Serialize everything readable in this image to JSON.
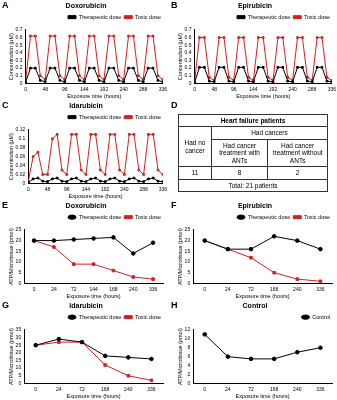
{
  "chart_data": [
    {
      "panel": "A",
      "type": "line",
      "title": "Doxorubicin",
      "x_label": "Exposure time (hours)",
      "y_label": "Concentration (μM)",
      "x": [
        0,
        12,
        24,
        36,
        48,
        60,
        72,
        84,
        96,
        108,
        120,
        132,
        144,
        156,
        168,
        180,
        192,
        204,
        216,
        228,
        240,
        252,
        264,
        276,
        288,
        300,
        312,
        324,
        336
      ],
      "xlim": [
        0,
        336
      ],
      "xticks": [
        0,
        48,
        96,
        144,
        192,
        240,
        288,
        336
      ],
      "ylim": [
        0,
        0.7
      ],
      "yticks": [
        0,
        0.1,
        0.2,
        0.3,
        0.4,
        0.5,
        0.6,
        0.7
      ],
      "grid": false,
      "legend": "upper right",
      "series": [
        {
          "name": "Therapeutic dose",
          "color": "#000000",
          "marker": "square",
          "values": [
            0.01,
            0.2,
            0.2,
            0.04,
            0.02,
            0.2,
            0.2,
            0.04,
            0.02,
            0.2,
            0.2,
            0.04,
            0.02,
            0.2,
            0.2,
            0.04,
            0.02,
            0.2,
            0.2,
            0.04,
            0.02,
            0.2,
            0.2,
            0.04,
            0.02,
            0.2,
            0.2,
            0.04,
            0.02
          ]
        },
        {
          "name": "Toxic dose",
          "color": "#d42020",
          "marker": "square",
          "values": [
            0.02,
            0.62,
            0.62,
            0.1,
            0.05,
            0.62,
            0.62,
            0.1,
            0.05,
            0.62,
            0.62,
            0.1,
            0.05,
            0.62,
            0.62,
            0.1,
            0.05,
            0.62,
            0.62,
            0.1,
            0.05,
            0.62,
            0.62,
            0.1,
            0.05,
            0.62,
            0.62,
            0.1,
            0.05
          ]
        }
      ]
    },
    {
      "panel": "B",
      "type": "line",
      "title": "Epirubicin",
      "x_label": "Exposure time (hours)",
      "y_label": "Concentration (μM)",
      "x": [
        0,
        12,
        24,
        36,
        48,
        60,
        72,
        84,
        96,
        108,
        120,
        132,
        144,
        156,
        168,
        180,
        192,
        204,
        216,
        228,
        240,
        252,
        264,
        276,
        288,
        300,
        312,
        324,
        336
      ],
      "xlim": [
        0,
        336
      ],
      "xticks": [
        0,
        48,
        96,
        144,
        192,
        240,
        288,
        336
      ],
      "ylim": [
        0,
        0.7
      ],
      "yticks": [
        0,
        0.1,
        0.2,
        0.3,
        0.4,
        0.5,
        0.6,
        0.7
      ],
      "grid": false,
      "legend": "upper right",
      "series": [
        {
          "name": "Therapeutic dose",
          "color": "#000000",
          "marker": "square",
          "values": [
            0.01,
            0.21,
            0.21,
            0.03,
            0.02,
            0.21,
            0.21,
            0.03,
            0.02,
            0.21,
            0.21,
            0.03,
            0.02,
            0.21,
            0.21,
            0.03,
            0.02,
            0.21,
            0.21,
            0.03,
            0.02,
            0.21,
            0.21,
            0.03,
            0.02,
            0.21,
            0.21,
            0.03,
            0.02
          ]
        },
        {
          "name": "Toxic dose",
          "color": "#d42020",
          "marker": "square",
          "values": [
            0.02,
            0.6,
            0.6,
            0.08,
            0.04,
            0.6,
            0.6,
            0.08,
            0.04,
            0.6,
            0.6,
            0.08,
            0.04,
            0.6,
            0.6,
            0.08,
            0.04,
            0.6,
            0.6,
            0.08,
            0.04,
            0.6,
            0.6,
            0.08,
            0.04,
            0.6,
            0.6,
            0.08,
            0.04
          ]
        }
      ]
    },
    {
      "panel": "C",
      "type": "line",
      "title": "Idarubicin",
      "x_label": "Exposure time (hours)",
      "y_label": "Concentration (μM)",
      "x": [
        0,
        12,
        24,
        36,
        48,
        60,
        72,
        84,
        96,
        108,
        120,
        132,
        144,
        156,
        168,
        180,
        192,
        204,
        216,
        228,
        240,
        252,
        264,
        276,
        288,
        300,
        312,
        324,
        336
      ],
      "xlim": [
        0,
        336
      ],
      "xticks": [
        0,
        48,
        96,
        144,
        192,
        240,
        288,
        336
      ],
      "ylim": [
        0,
        0.12
      ],
      "yticks": [
        0,
        0.02,
        0.04,
        0.06,
        0.08,
        0.1,
        0.12
      ],
      "grid": false,
      "legend": "upper right",
      "series": [
        {
          "name": "Therapeutic dose",
          "color": "#000000",
          "marker": "square",
          "values": [
            0.002,
            0.01,
            0.012,
            0.005,
            0.004,
            0.01,
            0.012,
            0.005,
            0.004,
            0.01,
            0.012,
            0.005,
            0.004,
            0.01,
            0.012,
            0.005,
            0.004,
            0.01,
            0.012,
            0.005,
            0.004,
            0.01,
            0.012,
            0.005,
            0.004,
            0.01,
            0.012,
            0.005,
            0.004
          ]
        },
        {
          "name": "Toxic dose",
          "color": "#d42020",
          "marker": "square",
          "values": [
            0.005,
            0.06,
            0.07,
            0.02,
            0.02,
            0.1,
            0.11,
            0.03,
            0.02,
            0.11,
            0.11,
            0.03,
            0.02,
            0.11,
            0.11,
            0.03,
            0.02,
            0.11,
            0.11,
            0.03,
            0.02,
            0.11,
            0.11,
            0.03,
            0.02,
            0.11,
            0.11,
            0.03,
            0.02
          ]
        }
      ]
    },
    {
      "panel": "E",
      "type": "line",
      "title": "Doxorubicin",
      "x_label": "Exposure time (hours)",
      "y_label": "ATP/Microtissue (pmol)",
      "categories": [
        "0",
        "24",
        "72",
        "144",
        "168",
        "240",
        "336"
      ],
      "ylim": [
        0,
        25
      ],
      "yticks": [
        0,
        5,
        10,
        15,
        20,
        25
      ],
      "grid": false,
      "legend": "upper right",
      "series": [
        {
          "name": "Therapeutic dose",
          "color": "#000000",
          "marker": "circle",
          "values": [
            20,
            20,
            20.5,
            21,
            21.5,
            14,
            19
          ]
        },
        {
          "name": "Toxic dose",
          "color": "#d42020",
          "marker": "square",
          "values": [
            20,
            17,
            9,
            9,
            6,
            3,
            2
          ]
        }
      ]
    },
    {
      "panel": "F",
      "type": "line",
      "title": "Epirubicin",
      "x_label": "Exposure time (hours)",
      "y_label": "ATP/Microtissue (pmol)",
      "categories": [
        "0",
        "24",
        "72",
        "168",
        "240",
        "336"
      ],
      "ylim": [
        0,
        25
      ],
      "yticks": [
        0,
        5,
        10,
        15,
        20,
        25
      ],
      "grid": false,
      "legend": "upper right",
      "series": [
        {
          "name": "Therapeutic dose",
          "color": "#000000",
          "marker": "circle",
          "values": [
            20,
            16,
            16,
            22,
            20,
            16
          ]
        },
        {
          "name": "Toxic dose",
          "color": "#d42020",
          "marker": "square",
          "values": [
            20,
            16,
            12,
            5,
            2,
            1
          ]
        }
      ]
    },
    {
      "panel": "G",
      "type": "line",
      "title": "Idarubicin",
      "x_label": "Exposure time (hours)",
      "y_label": "ATP/Microtissue (pmol)",
      "categories": [
        "0",
        "24",
        "72",
        "168",
        "240",
        "336"
      ],
      "ylim": [
        0,
        35
      ],
      "yticks": [
        0,
        5,
        10,
        15,
        20,
        25,
        30,
        35
      ],
      "grid": false,
      "legend": "upper right",
      "series": [
        {
          "name": "Therapeutic dose",
          "color": "#000000",
          "marker": "circle",
          "values": [
            25,
            29,
            27,
            18,
            17,
            16
          ]
        },
        {
          "name": "Toxic dose",
          "color": "#d42020",
          "marker": "square",
          "values": [
            25,
            27,
            27,
            12,
            5,
            2
          ]
        }
      ]
    },
    {
      "panel": "H",
      "type": "line",
      "title": "Control",
      "x_label": "Exposure time (hours)",
      "y_label": "ATP/Microtissue (pmol)",
      "categories": [
        "0",
        "24",
        "72",
        "168",
        "240",
        "336"
      ],
      "ylim": [
        0,
        12
      ],
      "yticks": [
        0,
        2,
        4,
        6,
        8,
        10,
        12
      ],
      "grid": false,
      "legend": "upper right",
      "series": [
        {
          "name": "Control",
          "color": "#000000",
          "marker": "circle",
          "values": [
            11,
            6,
            5.5,
            5.5,
            7,
            8
          ]
        }
      ]
    }
  ],
  "table": {
    "panel": "D",
    "header": "Heart failure patients",
    "columns": [
      "Had no cancer",
      "Had cancers"
    ],
    "subcolumns": [
      "Had cancer treatment with ANTs",
      "Had cancer treatment without ANTs"
    ],
    "counts": [
      11,
      8,
      2
    ],
    "total": "Total: 21 patients"
  }
}
